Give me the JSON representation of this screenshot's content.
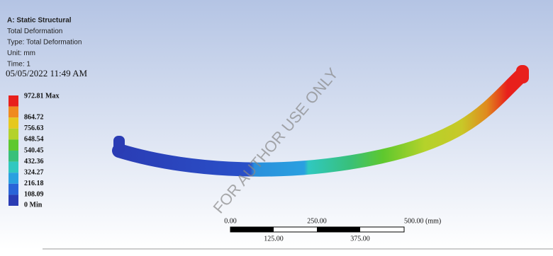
{
  "header": {
    "lines": [
      "A: Static Structural",
      "Total Deformation",
      "Type: Total Deformation",
      "Unit: mm",
      "Time: 1"
    ],
    "timestamp": "05/05/2022 11:49 AM"
  },
  "legend": {
    "entries": [
      {
        "label": "972.81 Max",
        "color": "#e8201c"
      },
      {
        "label": "864.72",
        "color": "#f08a1e"
      },
      {
        "label": "756.63",
        "color": "#e6c81e"
      },
      {
        "label": "648.54",
        "color": "#b4d22a"
      },
      {
        "label": "540.45",
        "color": "#5ec82e"
      },
      {
        "label": "432.36",
        "color": "#38c07a"
      },
      {
        "label": "324.27",
        "color": "#30c8c0"
      },
      {
        "label": "216.18",
        "color": "#2aa0e0"
      },
      {
        "label": "108.09",
        "color": "#2a64d8"
      },
      {
        "label": "0 Min",
        "color": "#2a3cb4"
      }
    ]
  },
  "scale_bar": {
    "top_labels": [
      "0.00",
      "250.00",
      "500.00 (mm)"
    ],
    "bottom_labels": [
      "125.00",
      "375.00"
    ]
  },
  "watermark": "FOR AUTHOR USE ONLY"
}
